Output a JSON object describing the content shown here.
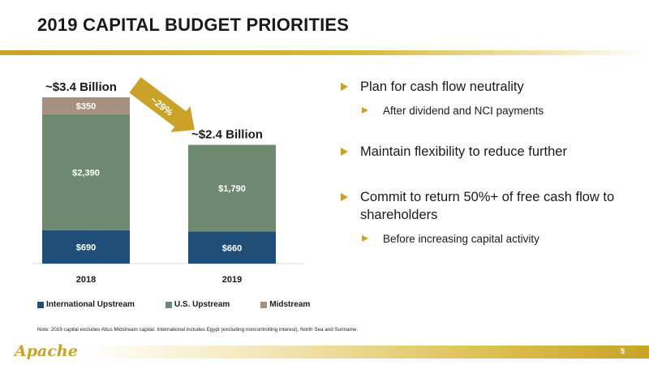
{
  "slide": {
    "title": "2019 CAPITAL BUDGET PRIORITIES",
    "page_number": "5",
    "logo_text": "Apache",
    "note": "Note: 2019 capital excludes Altus Midstream capital. International includes Egypt (excluding noncontrolling interest), North Sea and Suriname."
  },
  "bullets": {
    "b1": "Plan for cash flow neutrality",
    "b1_sub": "After dividend and NCI payments",
    "b2": "Maintain flexibility to reduce further",
    "b3": "Commit to return 50%+ of free cash flow to shareholders",
    "b3_sub": "Before increasing capital activity"
  },
  "chart_data": {
    "type": "bar",
    "stacked": true,
    "categories": [
      "2018",
      "2019"
    ],
    "series": [
      {
        "name": "International Upstream",
        "values": [
          690,
          660
        ],
        "labels": [
          "$690",
          "$660"
        ],
        "color": "#1f4e79"
      },
      {
        "name": "U.S. Upstream",
        "values": [
          2390,
          1790
        ],
        "labels": [
          "$2,390",
          "$1,790"
        ],
        "color": "#6e8b72"
      },
      {
        "name": "Midstream",
        "values": [
          350,
          0
        ],
        "labels": [
          "$350",
          ""
        ],
        "color": "#a69180"
      }
    ],
    "totals": [
      "~$3.4 Billion",
      "~$2.4 Billion"
    ],
    "change_annotation": "~29%",
    "ylim": [
      0,
      3500
    ],
    "legend_position": "bottom",
    "grid": false,
    "colors": {
      "arrow": "#c9a227",
      "axis": "#d9d9d9"
    }
  }
}
